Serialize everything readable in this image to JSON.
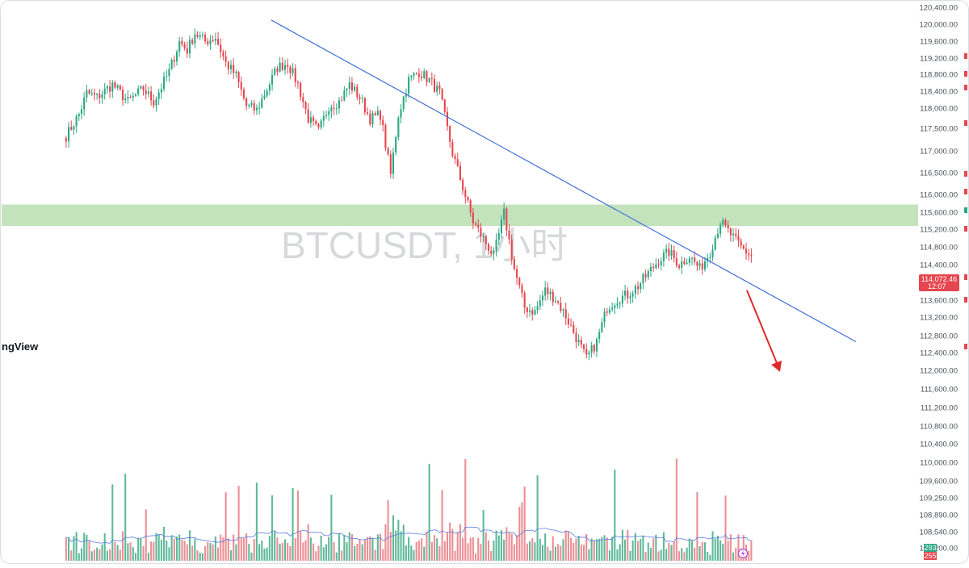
{
  "chart_data": {
    "type": "candlestick",
    "symbol": "BTCUSDT",
    "timeframe": "1小时",
    "watermark": "BTCUSDT, 1小时",
    "brand_text": "ngView",
    "price_axis_ticks": [
      "120,400.00",
      "120,000.00",
      "119,600.00",
      "119,200.00",
      "118,800.00",
      "118,400.00",
      "118,000.00",
      "117,500.00",
      "117,000.00",
      "116,500.00",
      "116,000.00",
      "115,600.00",
      "115,200.00",
      "114,800.00",
      "114,400.00",
      "113,600.00",
      "113,200.00",
      "112,800.00",
      "112,400.00",
      "112,000.00",
      "111,600.00",
      "111,200.00",
      "110,800.00",
      "110,400.00",
      "110,000.00",
      "109,600.00",
      "109,250.00",
      "108,890.00",
      "108,540.00",
      "108,200.00"
    ],
    "price_axis_range": [
      110000,
      120400
    ],
    "current_price": {
      "label": "114,072.46",
      "countdown": "12:07",
      "color": "#e5464f"
    },
    "volume_tags": {
      "buy": "293",
      "sell": "255"
    },
    "resistance_zone": {
      "from": 115300,
      "to": 115800,
      "color": "#b8deb1"
    },
    "trendline": {
      "from_index": 0,
      "from_price": 120100,
      "to_index": 227,
      "to_price": 112600,
      "color": "#3e6fd8"
    },
    "projected_move": {
      "direction": "down",
      "from_price": 113800,
      "to_price": 111900,
      "color": "#e02a2a"
    },
    "colors": {
      "up": "#2aa783",
      "down": "#e5464f",
      "volume_up": "#5fb99a",
      "volume_down": "#ec8f95",
      "volume_ma": "#5b7fe0"
    },
    "waypoints": [
      [
        -80,
        117400
      ],
      [
        -75,
        117900
      ],
      [
        -72,
        118400
      ],
      [
        -68,
        118300
      ],
      [
        -62,
        118600
      ],
      [
        -56,
        118200
      ],
      [
        -50,
        118500
      ],
      [
        -46,
        118200
      ],
      [
        -40,
        118900
      ],
      [
        -36,
        119600
      ],
      [
        -33,
        119400
      ],
      [
        -30,
        119800
      ],
      [
        -26,
        119600
      ],
      [
        -22,
        119700
      ],
      [
        -18,
        119100
      ],
      [
        -14,
        118800
      ],
      [
        -10,
        118100
      ],
      [
        -6,
        118000
      ],
      [
        -2,
        118500
      ],
      [
        2,
        119000
      ],
      [
        6,
        119100
      ],
      [
        10,
        118600
      ],
      [
        14,
        117800
      ],
      [
        18,
        117500
      ],
      [
        22,
        118100
      ],
      [
        26,
        118200
      ],
      [
        30,
        118600
      ],
      [
        34,
        118300
      ],
      [
        38,
        117800
      ],
      [
        42,
        117900
      ],
      [
        46,
        116500
      ],
      [
        49,
        117900
      ],
      [
        53,
        118700
      ],
      [
        57,
        118900
      ],
      [
        61,
        118700
      ],
      [
        65,
        118400
      ],
      [
        70,
        117000
      ],
      [
        74,
        116200
      ],
      [
        78,
        115400
      ],
      [
        82,
        115000
      ],
      [
        86,
        114600
      ],
      [
        90,
        115600
      ],
      [
        94,
        114300
      ],
      [
        98,
        113400
      ],
      [
        102,
        113300
      ],
      [
        106,
        113800
      ],
      [
        110,
        113600
      ],
      [
        114,
        113200
      ],
      [
        118,
        112700
      ],
      [
        122,
        112200
      ],
      [
        126,
        112600
      ],
      [
        130,
        113400
      ],
      [
        134,
        113600
      ],
      [
        138,
        113700
      ],
      [
        142,
        113900
      ],
      [
        146,
        114200
      ],
      [
        150,
        114500
      ],
      [
        154,
        114700
      ],
      [
        158,
        114400
      ],
      [
        162,
        114600
      ],
      [
        166,
        114300
      ],
      [
        170,
        114700
      ],
      [
        174,
        115400
      ],
      [
        178,
        115100
      ],
      [
        182,
        114800
      ],
      [
        186,
        114600
      ],
      [
        190,
        114400
      ],
      [
        194,
        114800
      ],
      [
        198,
        114300
      ],
      [
        202,
        113600
      ],
      [
        206,
        112900
      ],
      [
        210,
        113300
      ],
      [
        214,
        113900
      ],
      [
        218,
        113700
      ],
      [
        222,
        114000
      ],
      [
        226,
        114100
      ]
    ]
  }
}
